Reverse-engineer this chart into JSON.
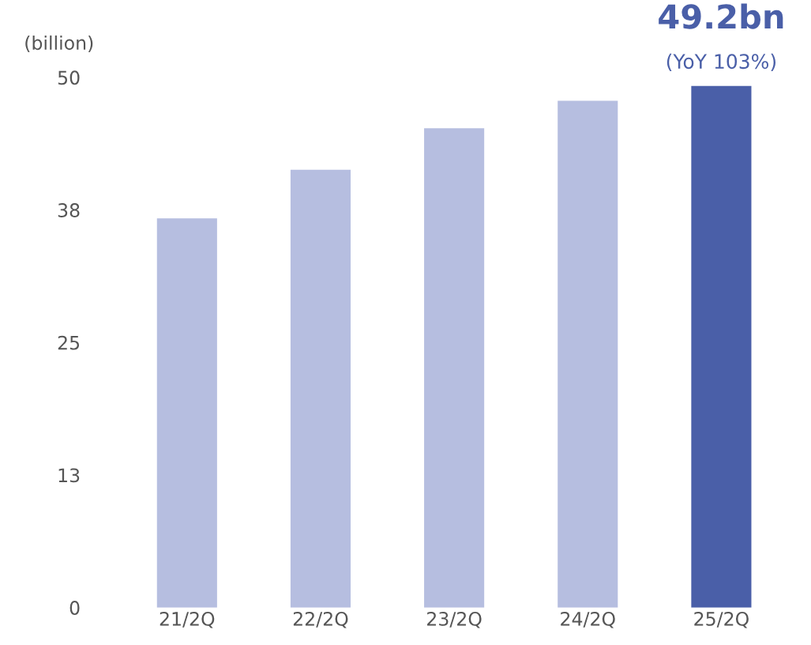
{
  "chart_data": {
    "type": "bar",
    "ylabel": "(billion)",
    "categories": [
      "21/2Q",
      "22/2Q",
      "23/2Q",
      "24/2Q",
      "25/2Q"
    ],
    "values": [
      36.7,
      41.3,
      45.2,
      47.8,
      49.2
    ],
    "colors": [
      "#b6bee0",
      "#b6bee0",
      "#b6bee0",
      "#b6bee0",
      "#4a5fa8"
    ],
    "value_labels": [
      null,
      null,
      null,
      null,
      "49.2bn"
    ],
    "annotations": [
      {
        "text": "(YoY 103%)",
        "x": "25/2Q",
        "y": 49.2
      }
    ],
    "ylim": [
      0,
      50
    ],
    "yticks": [
      0,
      {
        "value": 12.5,
        "label": "13"
      },
      25,
      {
        "value": 37.5,
        "label": "38"
      },
      50
    ],
    "grid": false,
    "legend": false
  }
}
